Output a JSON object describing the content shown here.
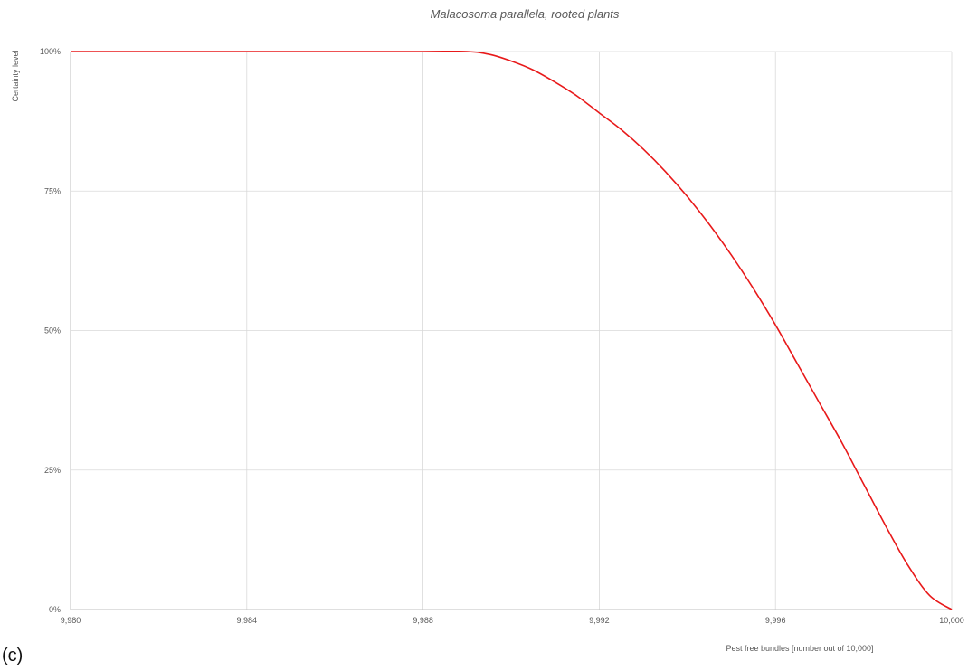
{
  "panel_label": "(c)",
  "chart_data": {
    "type": "line",
    "title": "Malacosoma parallela, rooted plants",
    "xlabel": "Pest free bundles [number out of 10,000]",
    "ylabel": "Certainty level",
    "xlim": [
      9980,
      10000
    ],
    "ylim": [
      0,
      1
    ],
    "x_ticks": [
      9980,
      9984,
      9988,
      9992,
      9996,
      10000
    ],
    "x_tick_labels": [
      "9,980",
      "9,984",
      "9,988",
      "9,992",
      "9,996",
      "10,000"
    ],
    "y_ticks": [
      0,
      0.25,
      0.5,
      0.75,
      1
    ],
    "y_tick_labels": [
      "0%",
      "25%",
      "50%",
      "75%",
      "100%"
    ],
    "grid": true,
    "legend": "none",
    "series": [
      {
        "color": "#e8191a",
        "x": [
          9980,
          9982,
          9984,
          9986,
          9988,
          9989,
          9989.5,
          9990,
          9990.5,
          9991,
          9991.5,
          9992,
          9992.5,
          9993,
          9993.5,
          9994,
          9994.5,
          9995,
          9995.5,
          9996,
          9996.5,
          9997,
          9997.5,
          9998,
          9998.5,
          9999,
          9999.5,
          10000
        ],
        "y": [
          1.0,
          1.0,
          1.0,
          1.0,
          1.0,
          1.0,
          0.995,
          0.983,
          0.967,
          0.945,
          0.92,
          0.89,
          0.86,
          0.825,
          0.785,
          0.74,
          0.69,
          0.635,
          0.575,
          0.51,
          0.44,
          0.37,
          0.3,
          0.225,
          0.15,
          0.08,
          0.025,
          0.0
        ]
      }
    ]
  }
}
